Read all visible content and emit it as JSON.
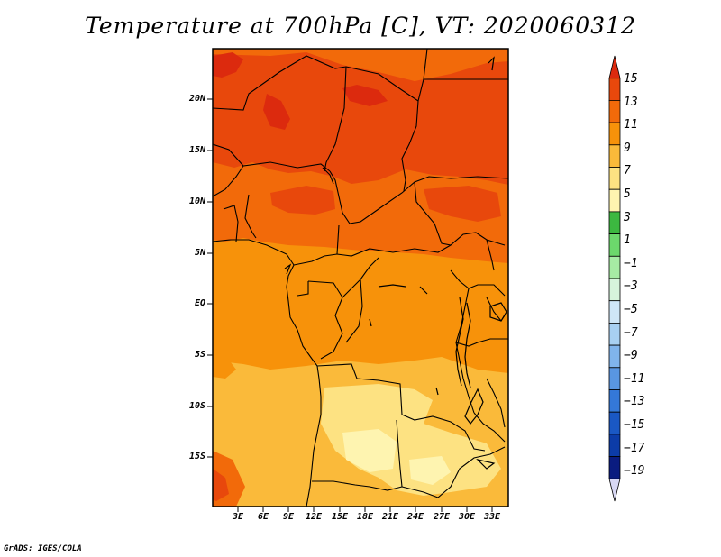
{
  "title": "Temperature at 700hPa [C], VT: 2020060312",
  "map": {
    "lat_labels": [
      "20N",
      "15N",
      "10N",
      "5N",
      "EQ",
      "5S",
      "10S",
      "15S"
    ],
    "lon_labels": [
      "3E",
      "6E",
      "9E",
      "12E",
      "15E",
      "18E",
      "21E",
      "24E",
      "27E",
      "30E",
      "33E"
    ],
    "region": "Central Africa"
  },
  "colorbar": {
    "labels": [
      "15",
      "13",
      "11",
      "9",
      "7",
      "5",
      "3",
      "1",
      "−1",
      "−3",
      "−5",
      "−7",
      "−9",
      "−11",
      "−13",
      "−15",
      "−17",
      "−19"
    ],
    "colors": [
      "#dc2a0e",
      "#e8480c",
      "#f26a0a",
      "#f7920a",
      "#faba3a",
      "#fde282",
      "#fef4b0",
      "#3cb840",
      "#6cd86c",
      "#a6eca4",
      "#d6f4dc",
      "#cfe6f7",
      "#a8d0f2",
      "#80b4ec",
      "#5996e2",
      "#3478d8",
      "#1a58c4",
      "#0c3ca8",
      "#0a1c80",
      "#d8d8f4"
    ]
  },
  "credit": "GrADS: IGES/COLA"
}
